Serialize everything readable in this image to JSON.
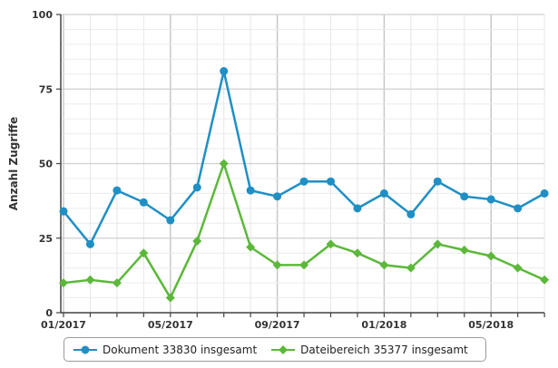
{
  "chart_data": {
    "type": "line",
    "ylabel": "Anzahl Zugriffe",
    "xlabel": "",
    "ylim": [
      0,
      100
    ],
    "yticks": [
      0,
      25,
      50,
      75,
      100
    ],
    "x": [
      "01/2017",
      "02/2017",
      "03/2017",
      "04/2017",
      "05/2017",
      "06/2017",
      "07/2017",
      "08/2017",
      "09/2017",
      "10/2017",
      "11/2017",
      "12/2017",
      "01/2018",
      "02/2018",
      "03/2018",
      "04/2018",
      "05/2018",
      "06/2018",
      "07/2018"
    ],
    "xticks": [
      "01/2017",
      "05/2017",
      "09/2017",
      "01/2018",
      "05/2018"
    ],
    "grid": true,
    "legend_position": "bottom",
    "series": [
      {
        "name": "Dokument 33830 insgesamt",
        "color": "#1f8fc4",
        "marker": "circle",
        "values": [
          34,
          23,
          41,
          37,
          31,
          42,
          81,
          41,
          39,
          44,
          44,
          35,
          40,
          33,
          44,
          39,
          38,
          35,
          40
        ]
      },
      {
        "name": "Dateibereich 35377 insgesamt",
        "color": "#5cb83a",
        "marker": "diamond",
        "values": [
          10,
          11,
          10,
          20,
          5,
          24,
          50,
          22,
          16,
          16,
          23,
          20,
          16,
          15,
          23,
          21,
          19,
          15,
          11
        ]
      }
    ]
  }
}
